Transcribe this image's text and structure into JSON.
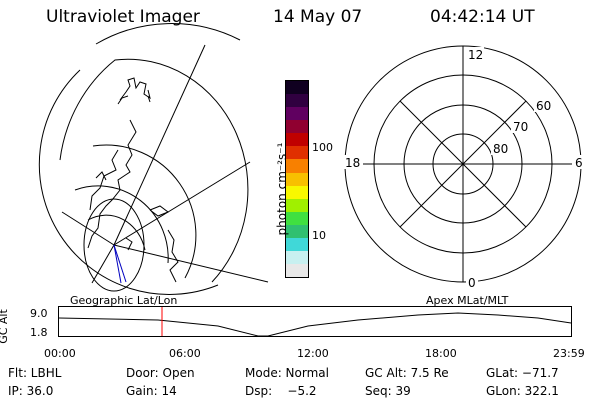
{
  "header": {
    "instrument": "Ultraviolet Imager",
    "date": "14 May 07",
    "time": "04:42:14 UT"
  },
  "colorbar": {
    "unit_label": "photon cm⁻²s⁻¹",
    "tick_100": "100",
    "tick_10": "10",
    "colors": [
      "#e8e8e8",
      "#c8f0f0",
      "#40d8d8",
      "#30c070",
      "#40e040",
      "#a0f000",
      "#f8f800",
      "#f8c000",
      "#f88000",
      "#e03000",
      "#c00000",
      "#900030",
      "#600060",
      "#300040",
      "#100020"
    ]
  },
  "polar": {
    "mlt_top": "12",
    "mlt_left": "18",
    "mlt_right": "6",
    "mlt_bottom": "0",
    "lat_60": "60",
    "lat_70": "70",
    "lat_80": "80"
  },
  "map_labels": {
    "geographic": "Geographic Lat/Lon",
    "apex": "Apex MLat/MLT"
  },
  "alt_plot": {
    "ylabel": "GC Alt",
    "y_top": "9.0",
    "y_bottom": "1.8",
    "x_ticks": [
      "00:00",
      "06:00",
      "12:00",
      "18:00",
      "23:59"
    ],
    "marker_color": "#ff0000"
  },
  "info": {
    "flt": "Flt: LBHL",
    "door": "Door: Open",
    "mode": "Mode: Normal",
    "gc_alt": "GC Alt: 7.5 Re",
    "glat": "GLat: −71.7",
    "ip": "IP: 36.0",
    "gain": "Gain: 14",
    "dsp": "Dsp:    −5.2",
    "seq": "Seq: 39",
    "glon": "GLon: 322.1"
  }
}
